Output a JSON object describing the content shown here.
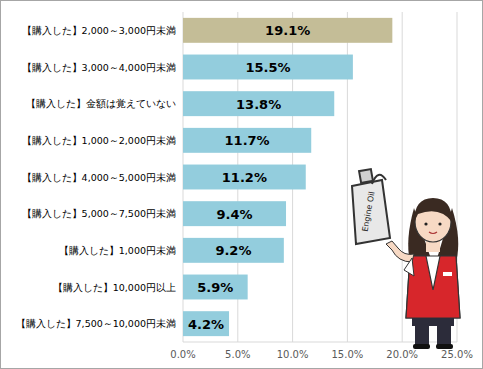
{
  "chart_data": {
    "type": "bar",
    "orientation": "horizontal",
    "categories": [
      "【購入した】2,000～3,000円未満",
      "【購入した】3,000～4,000円未満",
      "【購入した】金額は覚えていない",
      "【購入した】1,000～2,000円未満",
      "【購入した】4,000～5,000円未満",
      "【購入した】5,000～7,500円未満",
      "【購入した】1,000円未満",
      "【購入した】10,000円以上",
      "【購入した】7,500～10,000円未満"
    ],
    "values": [
      19.1,
      15.5,
      13.8,
      11.7,
      11.2,
      9.4,
      9.2,
      5.9,
      4.2
    ],
    "value_labels": [
      "19.1%",
      "15.5%",
      "13.8%",
      "11.7%",
      "11.2%",
      "9.4%",
      "9.2%",
      "5.9%",
      "4.2%"
    ],
    "colors": [
      "#c4bd97",
      "#93cddd",
      "#93cddd",
      "#93cddd",
      "#93cddd",
      "#93cddd",
      "#93cddd",
      "#93cddd",
      "#93cddd"
    ],
    "xlim": [
      0,
      25
    ],
    "xticks": [
      {
        "value": 0,
        "label": "0.0%"
      },
      {
        "value": 5,
        "label": "5.0%"
      },
      {
        "value": 10,
        "label": "10.0%"
      },
      {
        "value": 15,
        "label": "15.0%"
      },
      {
        "value": 20,
        "label": "20.0%"
      },
      {
        "value": 25,
        "label": "25.0%"
      }
    ],
    "grid": true,
    "data_labels": true,
    "annotations": [
      "Engine Oil"
    ]
  }
}
